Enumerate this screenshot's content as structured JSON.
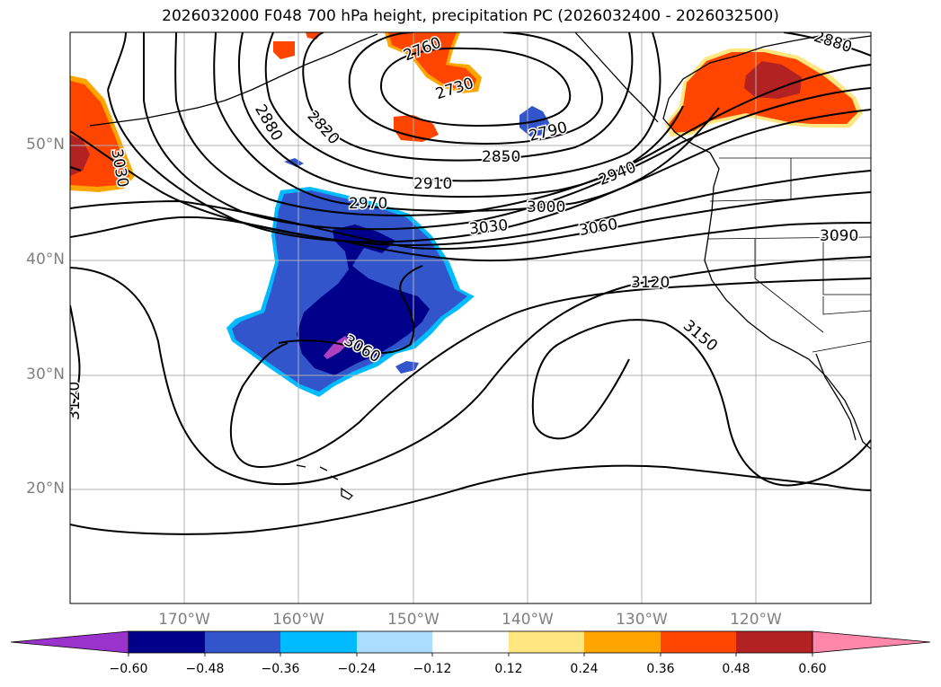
{
  "title": "2026032000 F048 700 hPa height, precipitation PC (2026032400 - 2026032500)",
  "lat_labels": [
    "50°N",
    "40°N",
    "30°N",
    "20°N"
  ],
  "lon_labels": [
    "170°W",
    "160°W",
    "150°W",
    "140°W",
    "130°W",
    "120°W"
  ],
  "contour_labels": [
    "2760",
    "2730",
    "2880",
    "2820",
    "2790",
    "2850",
    "2910",
    "2940",
    "2970",
    "3000",
    "3030",
    "3060",
    "3090",
    "3120",
    "3150",
    "3060",
    "3030",
    "3120",
    "2880"
  ],
  "colorbar": {
    "tick_labels": [
      "−0.60",
      "−0.48",
      "−0.36",
      "−0.24",
      "−0.12",
      "0.12",
      "0.24",
      "0.36",
      "0.48",
      "0.60"
    ],
    "colors": [
      "#9933cc",
      "#00008b",
      "#3355cc",
      "#00bbff",
      "#aaddff",
      "#ffffff",
      "#ffe680",
      "#ffa500",
      "#ff4500",
      "#b22222",
      "#ff88aa"
    ]
  },
  "precip_colors": {
    "strong_negative": "#00008b",
    "negative": "#3355cc",
    "weak_negative": "#00bbff",
    "very_strong_negative": "#b040c0",
    "positive": "#ff4500",
    "weak_positive": "#ffa500",
    "strong_positive": "#b22222"
  }
}
